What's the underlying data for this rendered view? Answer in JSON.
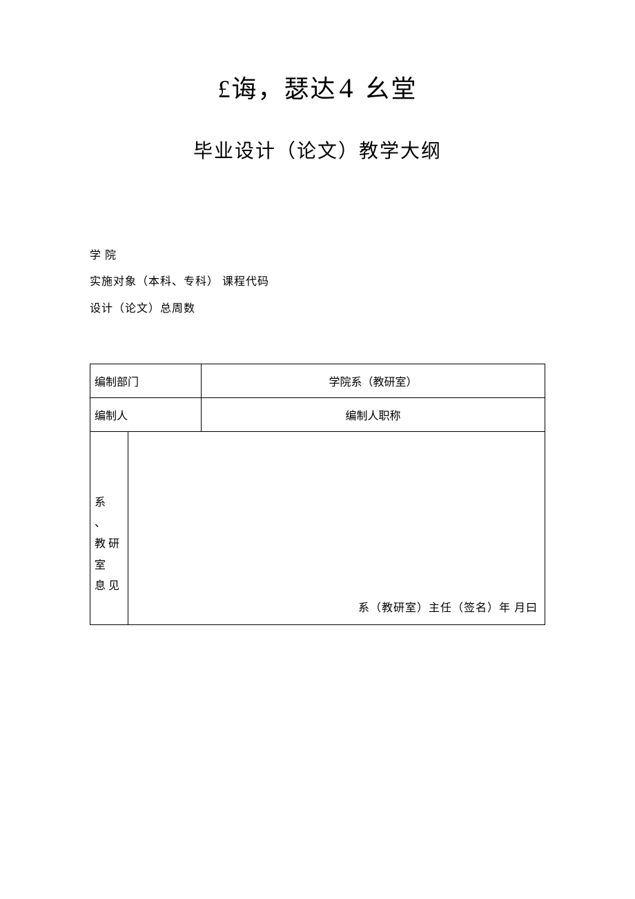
{
  "header": {
    "title1_prefix": "£诲，瑟达",
    "title1_num": "4",
    "title1_suffix": " 幺堂",
    "title2": "毕业设计（论文）教学大纲"
  },
  "info": {
    "line1": "学 院",
    "line2": "实施对象（本科、专科）  课程代码",
    "line3": "设计（论文）总周数"
  },
  "table": {
    "row1_label": "编制部门",
    "row1_value": "学院系（教研室）",
    "row2_label": "编制人",
    "row2_value": "编制人职称",
    "vertical_label_line1": "系",
    "vertical_label_line2": "、",
    "vertical_label_line3": "教研",
    "vertical_label_line3_spaced": "教 研",
    "vertical_label_line4": "室",
    "vertical_label_line5": "息 见",
    "signature_text": "系（教研室）主任（签名）年  月曰"
  },
  "colors": {
    "background": "#ffffff",
    "text": "#000000",
    "border": "#000000"
  },
  "typography": {
    "title1_fontsize": 36,
    "title2_fontsize": 28,
    "body_fontsize": 16,
    "font_family": "SimSun"
  }
}
